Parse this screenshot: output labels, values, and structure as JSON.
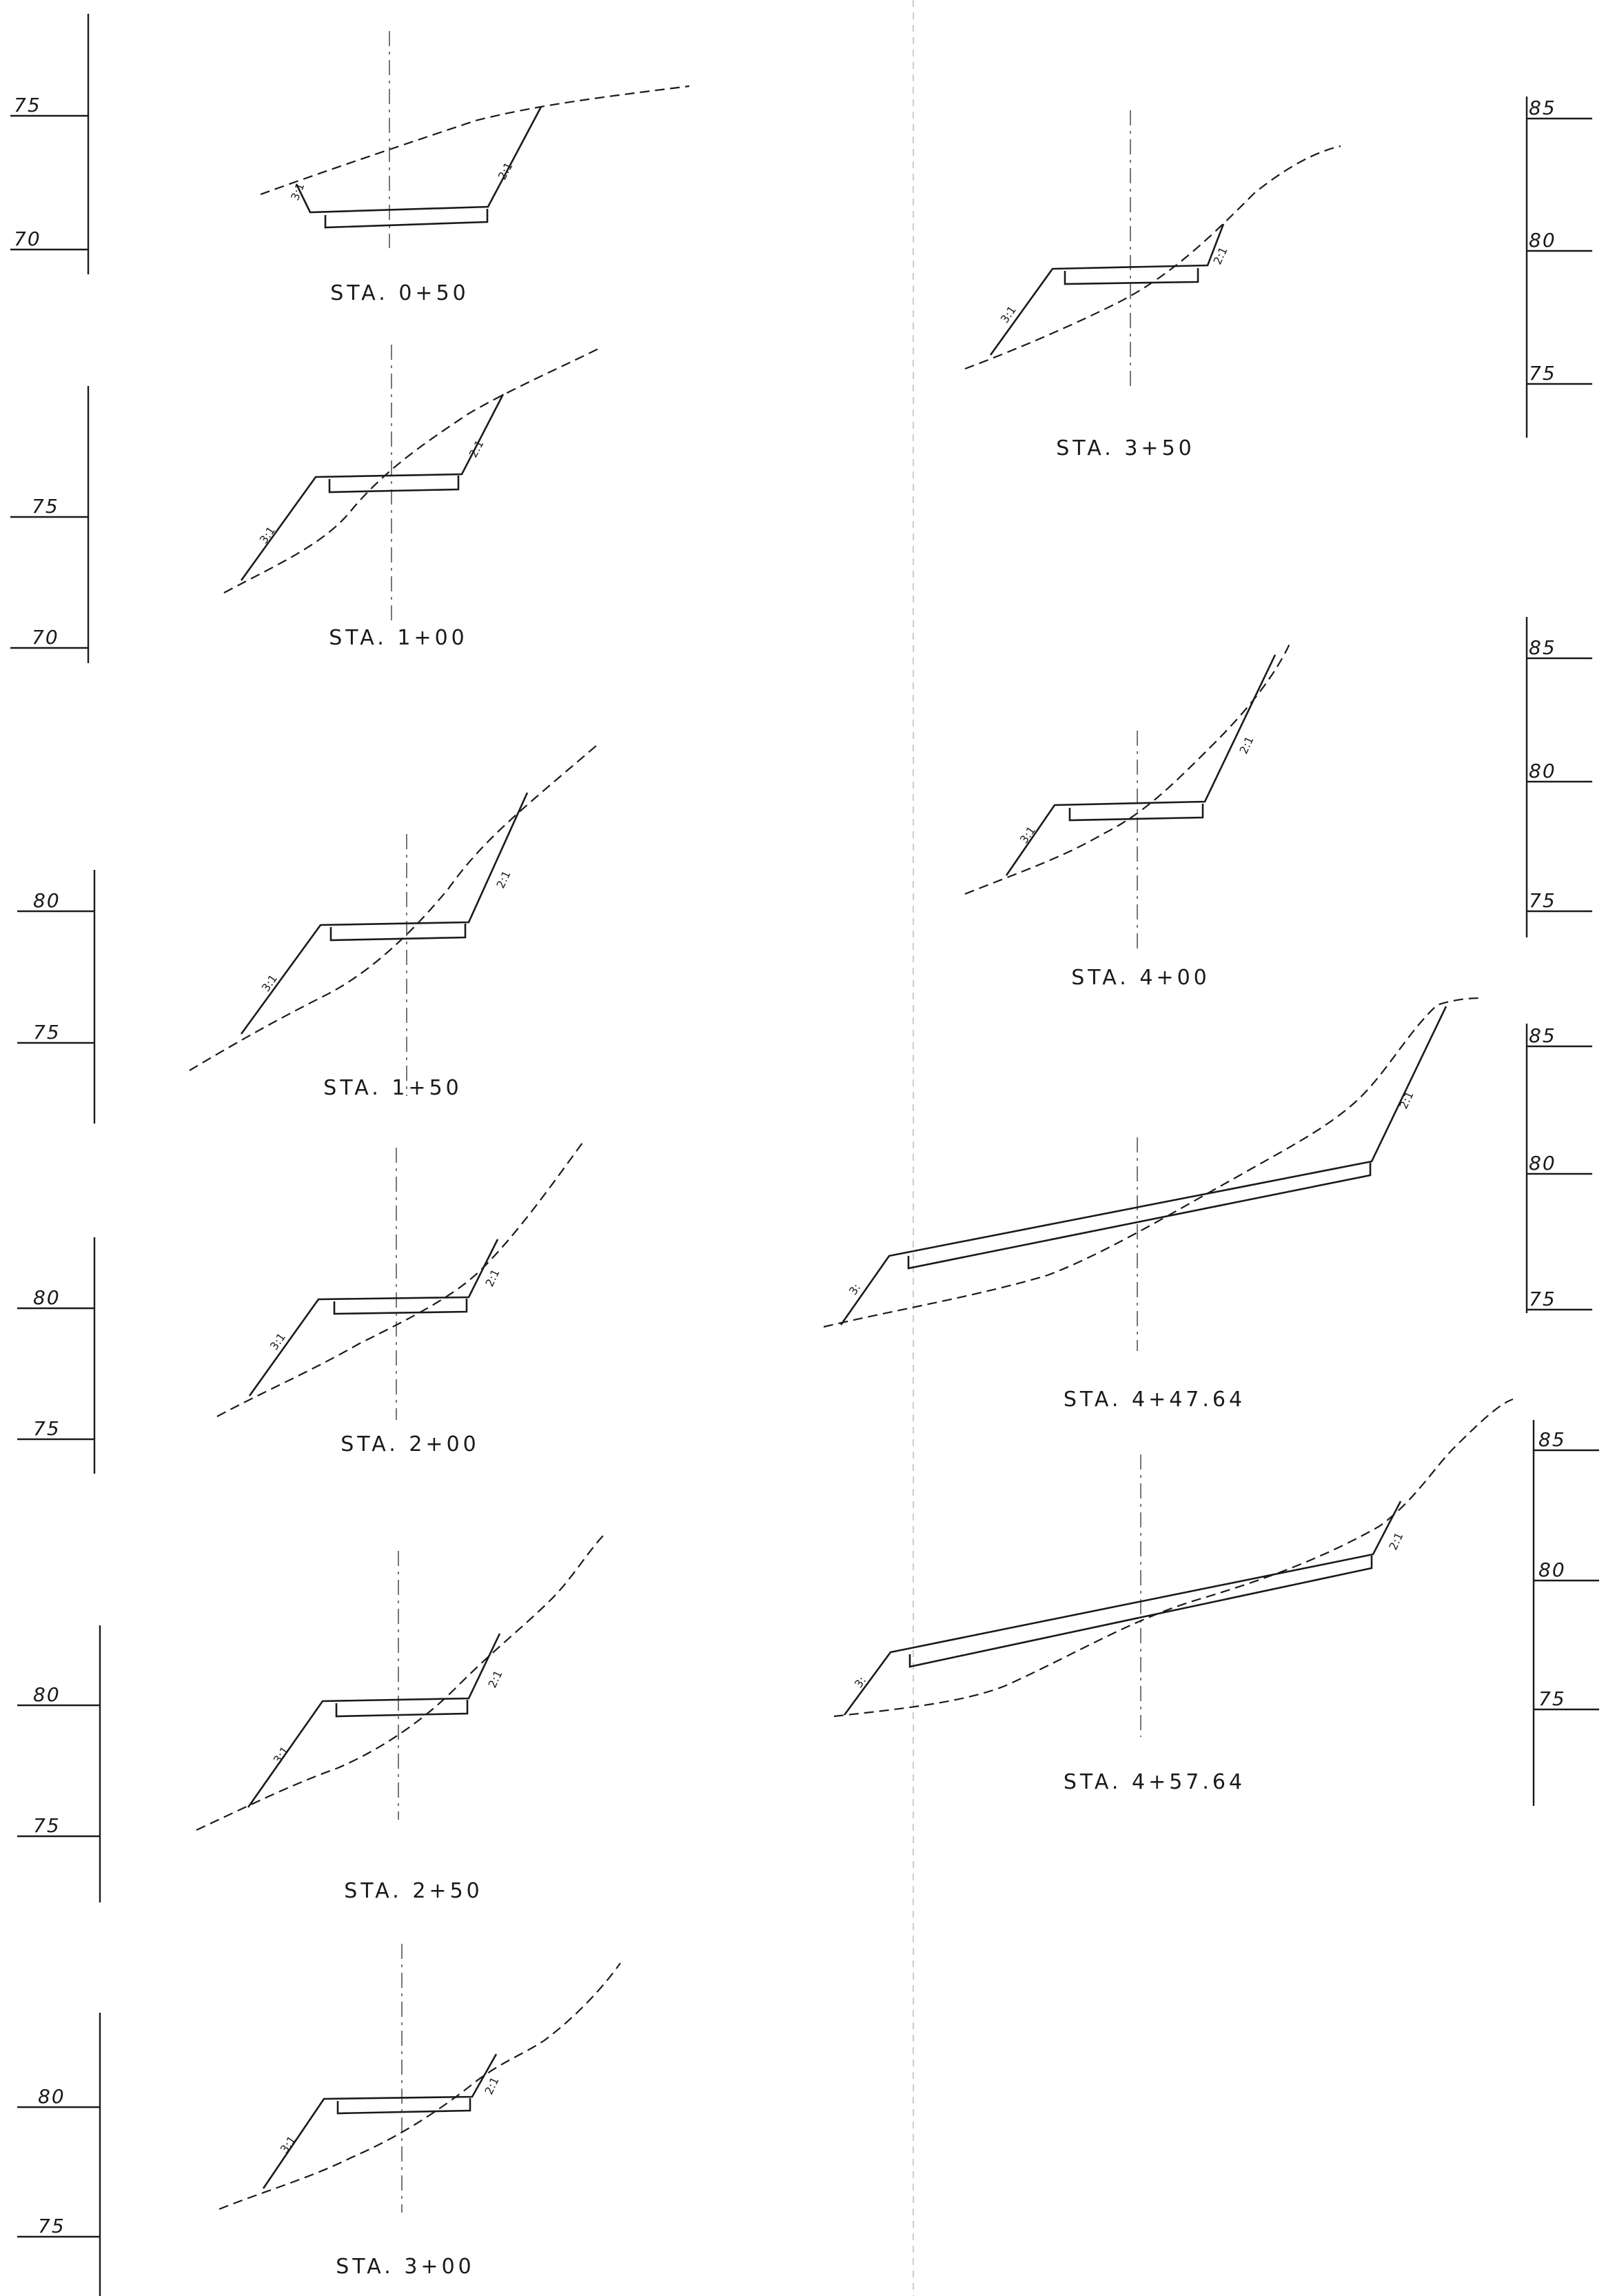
{
  "sections": [
    {
      "station": "STA. 0+50",
      "slope_left": "3:1",
      "slope_right": "2:1"
    },
    {
      "station": "STA. 1+00",
      "slope_left": "3:1",
      "slope_right": "2:1"
    },
    {
      "station": "STA. 1+50",
      "slope_left": "3:1",
      "slope_right": "2:1"
    },
    {
      "station": "STA. 2+00",
      "slope_left": "3:1",
      "slope_right": "2:1"
    },
    {
      "station": "STA. 2+50",
      "slope_left": "3:1",
      "slope_right": "2:1"
    },
    {
      "station": "STA. 3+00",
      "slope_left": "3:1",
      "slope_right": "2:1"
    },
    {
      "station": "STA. 3+50",
      "slope_left": "3:1",
      "slope_right": "2:1"
    },
    {
      "station": "STA. 4+00",
      "slope_left": "3:1",
      "slope_right": "2:1"
    },
    {
      "station": "STA. 4+47.64",
      "slope_left": "3:",
      "slope_right": "2:1"
    },
    {
      "station": "STA. 4+57.64",
      "slope_left": "3:",
      "slope_right": "2:1"
    }
  ],
  "left_scales": [
    {
      "ticks": [
        "75",
        "70"
      ]
    },
    {
      "ticks": [
        "75",
        "70"
      ]
    },
    {
      "ticks": [
        "80",
        "75"
      ]
    },
    {
      "ticks": [
        "80",
        "75"
      ]
    },
    {
      "ticks": [
        "80",
        "75"
      ]
    },
    {
      "ticks": [
        "80",
        "75"
      ]
    }
  ],
  "right_scales": [
    {
      "ticks": [
        "85",
        "80",
        "75"
      ]
    },
    {
      "ticks": [
        "85",
        "80",
        "75"
      ]
    },
    {
      "ticks": [
        "85",
        "80",
        "75"
      ]
    },
    {
      "ticks": [
        "85",
        "80",
        "75"
      ]
    }
  ]
}
